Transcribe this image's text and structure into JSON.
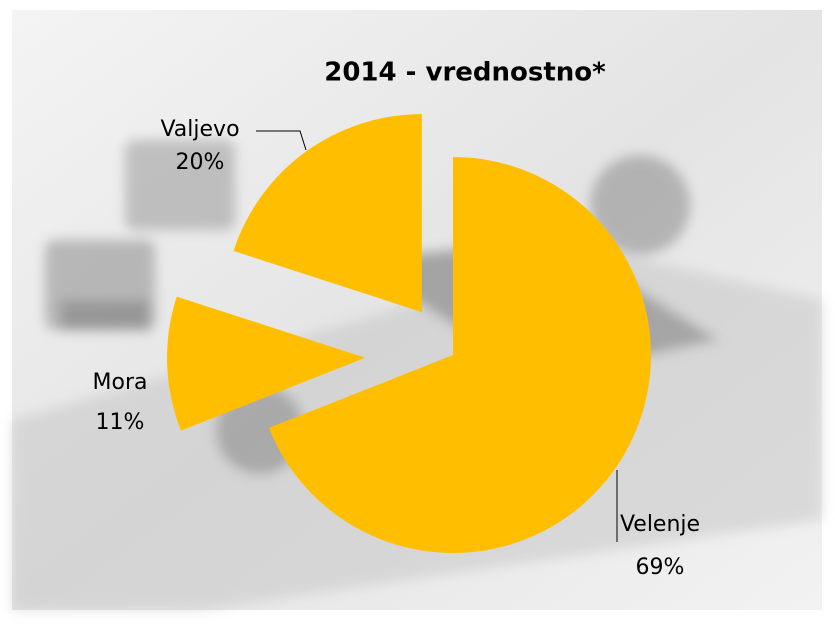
{
  "chart_data": {
    "type": "pie",
    "title": "2014 - vrednostno*",
    "categories": [
      "Velenje",
      "Mora",
      "Valjevo"
    ],
    "values": [
      69,
      11,
      20
    ],
    "value_labels": [
      "69%",
      "11%",
      "20%"
    ],
    "color": "#ffbe00"
  }
}
